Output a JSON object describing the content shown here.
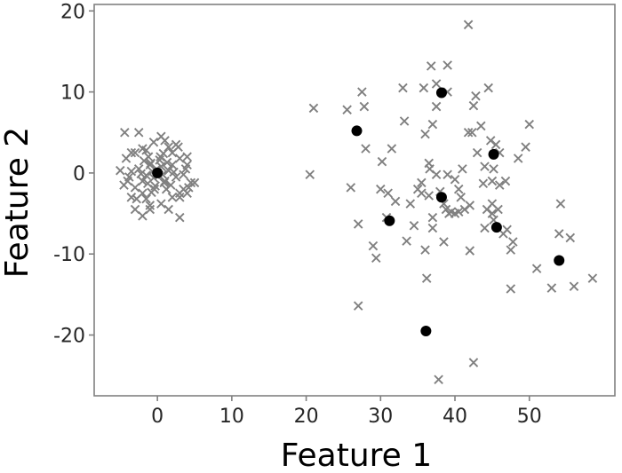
{
  "chart_data": {
    "type": "scatter",
    "title": "",
    "xlabel": "Feature 1",
    "ylabel": "Feature 2",
    "xlim": [
      -8.5,
      61.5
    ],
    "ylim": [
      -27.5,
      20.8
    ],
    "xticks": [
      0,
      10,
      20,
      30,
      40,
      50
    ],
    "yticks": [
      20,
      10,
      0,
      -10,
      -20
    ],
    "grid": false,
    "legend": "none",
    "colors": {
      "data": "#808080",
      "centers": "#000000",
      "axes": "#808080"
    },
    "series": [
      {
        "marker": "x",
        "color": "#808080",
        "points": [
          [
            0,
            0
          ],
          [
            0.5,
            0.8
          ],
          [
            -0.5,
            -0.6
          ],
          [
            1,
            -1
          ],
          [
            -1,
            1
          ],
          [
            1.5,
            0.3
          ],
          [
            -1.5,
            -0.3
          ],
          [
            0.3,
            1.6
          ],
          [
            -0.3,
            -1.6
          ],
          [
            2,
            1
          ],
          [
            -2,
            -1
          ],
          [
            1.2,
            -2
          ],
          [
            -1.2,
            2
          ],
          [
            2.5,
            -0.5
          ],
          [
            -2.5,
            0.5
          ],
          [
            0.8,
            2.4
          ],
          [
            -0.8,
            -2.4
          ],
          [
            3,
            1.8
          ],
          [
            -3,
            -1.8
          ],
          [
            2,
            -3
          ],
          [
            -2,
            3
          ],
          [
            3.5,
            -0.2
          ],
          [
            -3.5,
            0.2
          ],
          [
            1.5,
            3.2
          ],
          [
            -1.5,
            -3.2
          ],
          [
            3,
            -2.5
          ],
          [
            -3,
            2.5
          ],
          [
            4,
            1
          ],
          [
            -4,
            -1
          ],
          [
            0.5,
            -3.8
          ],
          [
            -0.5,
            3.8
          ],
          [
            2.8,
            3.2
          ],
          [
            -2.8,
            -3.2
          ],
          [
            4.2,
            -1.8
          ],
          [
            -4.2,
            1.8
          ],
          [
            1,
            4
          ],
          [
            -1,
            -4
          ],
          [
            0.2,
            -0.3
          ],
          [
            -0.2,
            0.4
          ],
          [
            0.7,
            -0.2
          ],
          [
            -0.7,
            0.2
          ],
          [
            1.3,
            1.3
          ],
          [
            -1.3,
            -1.3
          ],
          [
            1.8,
            -1.5
          ],
          [
            -1.8,
            1.5
          ],
          [
            0.4,
            2
          ],
          [
            -0.4,
            -2
          ],
          [
            2.2,
            0.1
          ],
          [
            -2.2,
            -0.1
          ],
          [
            0.9,
            -1.2
          ],
          [
            -0.9,
            1.2
          ],
          [
            -5,
            0.3
          ],
          [
            -4.5,
            -1.5
          ],
          [
            -4.4,
            5
          ],
          [
            -2.5,
            5
          ],
          [
            -3,
            -4.5
          ],
          [
            -2,
            -5.3
          ],
          [
            3,
            -5.5
          ],
          [
            4,
            -2.5
          ],
          [
            5,
            -1.2
          ],
          [
            3.5,
            -2
          ],
          [
            4,
            2
          ],
          [
            2.5,
            3.5
          ],
          [
            -3.5,
            -3
          ],
          [
            1.5,
            -4.5
          ],
          [
            -1,
            -4.5
          ],
          [
            3,
            -3
          ],
          [
            -3.5,
            2.5
          ],
          [
            0.5,
            4.5
          ],
          [
            2,
            2.5
          ],
          [
            -2,
            -2.5
          ],
          [
            3.8,
            0.5
          ],
          [
            -3.8,
            -0.5
          ],
          [
            4.5,
            -1.2
          ],
          [
            -1.5,
            2.8
          ],
          [
            20.5,
            -0.2
          ],
          [
            21,
            8
          ],
          [
            25.5,
            7.8
          ],
          [
            26,
            -1.8
          ],
          [
            27,
            -6.3
          ],
          [
            27,
            -16.4
          ],
          [
            27.5,
            10
          ],
          [
            27.8,
            8.2
          ],
          [
            28,
            3
          ],
          [
            29,
            -9
          ],
          [
            29.4,
            -10.5
          ],
          [
            30,
            -2
          ],
          [
            30.2,
            1.4
          ],
          [
            30.8,
            -5.5
          ],
          [
            31,
            -2.5
          ],
          [
            31.5,
            3
          ],
          [
            32,
            -3.5
          ],
          [
            33,
            10.5
          ],
          [
            33.2,
            6.4
          ],
          [
            33.5,
            -8.4
          ],
          [
            34,
            -3.8
          ],
          [
            34.5,
            -6.5
          ],
          [
            35,
            -2
          ],
          [
            35.5,
            -1.2
          ],
          [
            35.5,
            -2.5
          ],
          [
            35.8,
            10.5
          ],
          [
            36,
            4.8
          ],
          [
            36,
            -9.5
          ],
          [
            36.2,
            -13
          ],
          [
            36.5,
            -2.8
          ],
          [
            36.5,
            1.2
          ],
          [
            36.6,
            0.5
          ],
          [
            36.8,
            13.2
          ],
          [
            37,
            -5.5
          ],
          [
            37,
            -6.8
          ],
          [
            37,
            6
          ],
          [
            37.5,
            -0.2
          ],
          [
            37.5,
            8.2
          ],
          [
            37.5,
            11
          ],
          [
            37.8,
            -25.5
          ],
          [
            38,
            -2.3
          ],
          [
            38.5,
            -3.8
          ],
          [
            38.5,
            -8.5
          ],
          [
            38.8,
            -4.5
          ],
          [
            39,
            13.3
          ],
          [
            39,
            10
          ],
          [
            39,
            -0.2
          ],
          [
            39.2,
            -5
          ],
          [
            39.5,
            -4.8
          ],
          [
            40,
            -0.8
          ],
          [
            40,
            -5
          ],
          [
            40.5,
            -2
          ],
          [
            40.5,
            -4.8
          ],
          [
            40.8,
            -3
          ],
          [
            41,
            0.5
          ],
          [
            41.3,
            -4.5
          ],
          [
            41.8,
            18.3
          ],
          [
            41.8,
            5
          ],
          [
            42,
            -9.6
          ],
          [
            42,
            -4
          ],
          [
            42.3,
            5
          ],
          [
            42.5,
            -23.4
          ],
          [
            42.5,
            8.3
          ],
          [
            42.8,
            9.5
          ],
          [
            43,
            2.5
          ],
          [
            43.5,
            5.8
          ],
          [
            43.8,
            -1.3
          ],
          [
            44,
            -6.8
          ],
          [
            44,
            0.8
          ],
          [
            44.3,
            -4.5
          ],
          [
            44.5,
            10.5
          ],
          [
            44.8,
            4
          ],
          [
            45,
            -3.8
          ],
          [
            45,
            -5
          ],
          [
            45,
            -1
          ],
          [
            45.2,
            -5.8
          ],
          [
            45.2,
            0.5
          ],
          [
            45.5,
            3.5
          ],
          [
            45.8,
            -4.5
          ],
          [
            46,
            -1.5
          ],
          [
            46,
            2.5
          ],
          [
            46.5,
            -7.5
          ],
          [
            46.8,
            -1
          ],
          [
            47,
            -7
          ],
          [
            47.5,
            -14.3
          ],
          [
            47.5,
            -9.5
          ],
          [
            47.8,
            -8.5
          ],
          [
            48.5,
            1.8
          ],
          [
            49.5,
            3.2
          ],
          [
            50,
            6
          ],
          [
            51,
            -11.8
          ],
          [
            53,
            -14.2
          ],
          [
            54,
            -7.5
          ],
          [
            54.2,
            -3.8
          ],
          [
            55.5,
            -8
          ],
          [
            56,
            -14
          ],
          [
            58.5,
            -13
          ]
        ]
      },
      {
        "marker": "o",
        "color": "#000000",
        "points": [
          [
            0,
            0
          ],
          [
            26.8,
            5.2
          ],
          [
            31.2,
            -5.9
          ],
          [
            36.1,
            -19.5
          ],
          [
            38.2,
            9.9
          ],
          [
            38.2,
            -3.0
          ],
          [
            45.2,
            2.3
          ],
          [
            45.6,
            -6.7
          ],
          [
            54.0,
            -10.8
          ]
        ]
      }
    ]
  }
}
